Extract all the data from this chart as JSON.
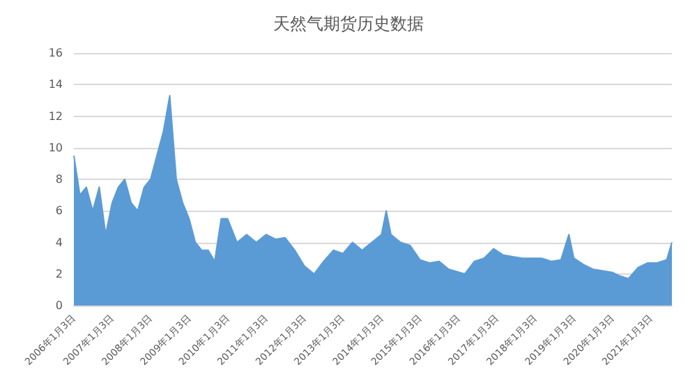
{
  "chart_data": {
    "type": "area",
    "title": "天然气期货历史数据",
    "x": [
      "2006-01-03",
      "2006-03-01",
      "2006-05-01",
      "2006-07-01",
      "2006-09-01",
      "2006-11-01",
      "2007-01-01",
      "2007-03-01",
      "2007-05-01",
      "2007-07-01",
      "2007-09-01",
      "2007-11-01",
      "2008-01-01",
      "2008-03-01",
      "2008-05-01",
      "2008-07-01",
      "2008-09-01",
      "2008-11-01",
      "2009-01-01",
      "2009-03-01",
      "2009-05-01",
      "2009-07-01",
      "2009-09-01",
      "2009-11-01",
      "2010-01-01",
      "2010-04-01",
      "2010-07-01",
      "2010-10-01",
      "2011-01-01",
      "2011-04-01",
      "2011-07-01",
      "2011-10-01",
      "2012-01-01",
      "2012-04-01",
      "2012-07-01",
      "2012-10-01",
      "2013-01-01",
      "2013-04-01",
      "2013-07-01",
      "2013-10-01",
      "2014-01-01",
      "2014-02-15",
      "2014-04-01",
      "2014-07-01",
      "2014-10-01",
      "2015-01-01",
      "2015-04-01",
      "2015-07-01",
      "2015-10-01",
      "2016-03-01",
      "2016-06-01",
      "2016-09-01",
      "2016-12-01",
      "2017-03-01",
      "2017-06-01",
      "2017-09-01",
      "2017-12-01",
      "2018-03-01",
      "2018-06-01",
      "2018-09-01",
      "2018-11-15",
      "2019-01-01",
      "2019-04-01",
      "2019-07-01",
      "2019-10-01",
      "2020-01-01",
      "2020-03-01",
      "2020-06-01",
      "2020-09-01",
      "2020-12-01",
      "2021-03-01",
      "2021-06-01",
      "2021-07-20"
    ],
    "series": [
      {
        "color": "#5b9bd5",
        "values": [
          9.5,
          7,
          7.5,
          6,
          7.5,
          4.5,
          6.5,
          7.5,
          8,
          6.5,
          6,
          7.5,
          8,
          9.5,
          11,
          13.3,
          8,
          6.5,
          5.5,
          4,
          3.5,
          3.5,
          2.8,
          5.5,
          5.5,
          4,
          4.5,
          4,
          4.5,
          4.2,
          4.3,
          3.5,
          2.5,
          2,
          2.8,
          3.5,
          3.3,
          4,
          3.5,
          4,
          4.5,
          6,
          4.5,
          4,
          3.8,
          2.9,
          2.7,
          2.8,
          2.3,
          2,
          2.8,
          3,
          3.6,
          3.2,
          3.1,
          3,
          3,
          3,
          2.8,
          2.9,
          4.5,
          3,
          2.6,
          2.3,
          2.2,
          2.1,
          1.9,
          1.7,
          2.4,
          2.7,
          2.7,
          2.9,
          4
        ]
      }
    ],
    "xlim": [
      "2006-01-03",
      "2021-07-20"
    ],
    "xticks": [
      {
        "value": "2006-01-03",
        "label": "2006年1月3日"
      },
      {
        "value": "2007-01-03",
        "label": "2007年1月3日"
      },
      {
        "value": "2008-01-03",
        "label": "2008年1月3日"
      },
      {
        "value": "2009-01-03",
        "label": "2009年1月3日"
      },
      {
        "value": "2010-01-03",
        "label": "2010年1月3日"
      },
      {
        "value": "2011-01-03",
        "label": "2011年1月3日"
      },
      {
        "value": "2012-01-03",
        "label": "2012年1月3日"
      },
      {
        "value": "2013-01-03",
        "label": "2013年1月3日"
      },
      {
        "value": "2014-01-03",
        "label": "2014年1月3日"
      },
      {
        "value": "2015-01-03",
        "label": "2015年1月3日"
      },
      {
        "value": "2016-01-03",
        "label": "2016年1月3日"
      },
      {
        "value": "2017-01-03",
        "label": "2017年1月3日"
      },
      {
        "value": "2018-01-03",
        "label": "2018年1月3日"
      },
      {
        "value": "2019-01-03",
        "label": "2019年1月3日"
      },
      {
        "value": "2020-01-03",
        "label": "2020年1月3日"
      },
      {
        "value": "2021-01-03",
        "label": "2021年1月3日"
      }
    ],
    "ylim": [
      0,
      16
    ],
    "yticks": [
      0,
      2,
      4,
      6,
      8,
      10,
      12,
      14,
      16
    ],
    "grid": "y"
  }
}
